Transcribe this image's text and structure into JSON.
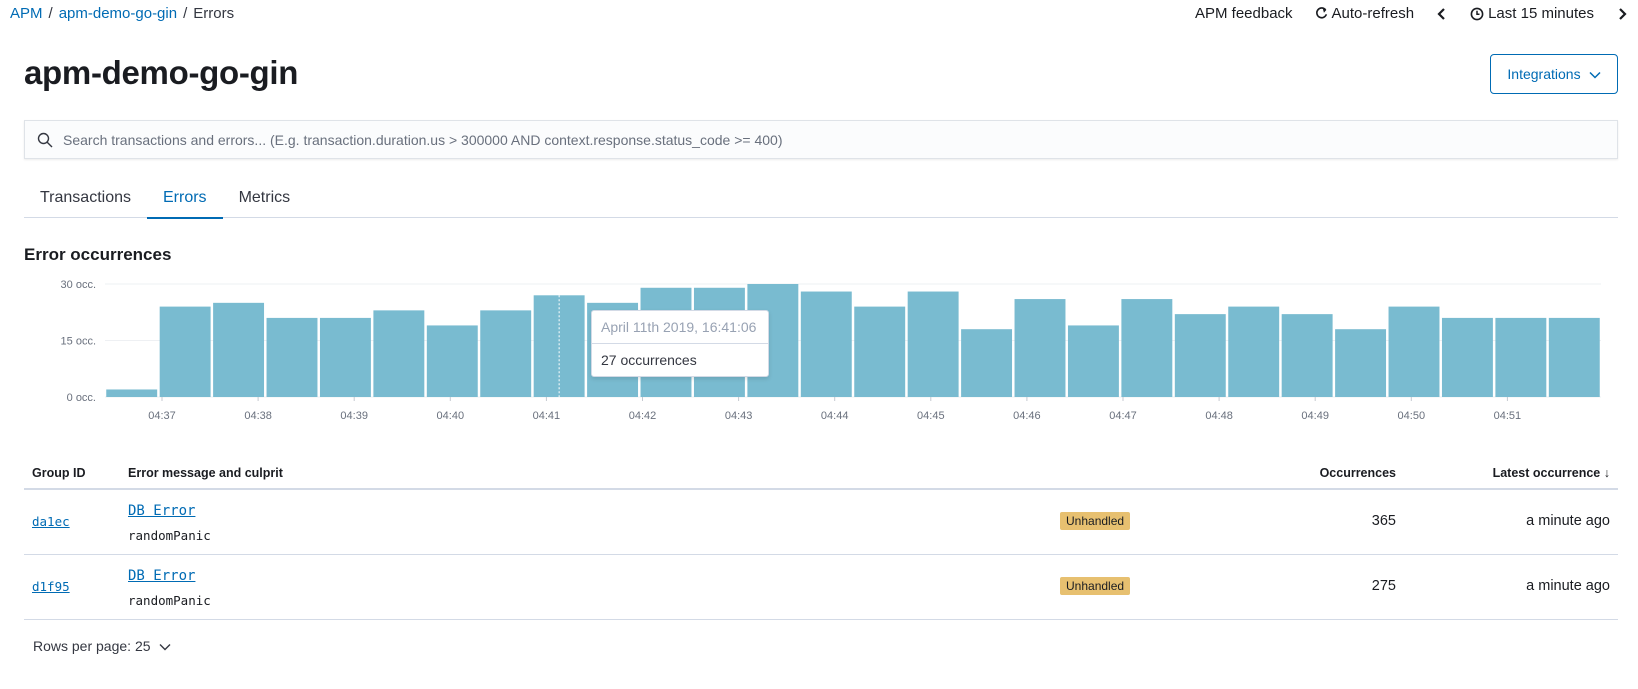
{
  "breadcrumb": {
    "root": "APM",
    "service": "apm-demo-go-gin",
    "current": "Errors",
    "separator": "/"
  },
  "header": {
    "feedback": "APM feedback",
    "auto_refresh": "Auto-refresh",
    "time_range": "Last 15 minutes"
  },
  "page": {
    "title": "apm-demo-go-gin",
    "integrations_label": "Integrations"
  },
  "search": {
    "placeholder": "Search transactions and errors... (E.g. transaction.duration.us > 300000 AND context.response.status_code >= 400)",
    "value": ""
  },
  "tabs": [
    {
      "label": "Transactions",
      "active": false
    },
    {
      "label": "Errors",
      "active": true
    },
    {
      "label": "Metrics",
      "active": false
    }
  ],
  "section_title": "Error occurrences",
  "chart_data": {
    "type": "bar",
    "title": "Error occurrences",
    "y_ticks": [
      "30 occ.",
      "15 occ.",
      "0 occ."
    ],
    "ylim": [
      0,
      30
    ],
    "x_tick_labels": [
      "04:37",
      "04:38",
      "04:39",
      "04:40",
      "04:41",
      "04:42",
      "04:43",
      "04:44",
      "04:45",
      "04:46",
      "04:47",
      "04:48",
      "04:49",
      "04:50",
      "04:51"
    ],
    "values": [
      2,
      24,
      25,
      21,
      21,
      23,
      19,
      23,
      27,
      25,
      29,
      29,
      30,
      28,
      24,
      28,
      18,
      26,
      19,
      26,
      22,
      24,
      22,
      18,
      24,
      21,
      21,
      21
    ],
    "highlight_index": 8,
    "color": "#79bbd0"
  },
  "tooltip": {
    "title": "April 11th 2019, 16:41:06",
    "value": "27 occurrences"
  },
  "table": {
    "headers": {
      "group_id": "Group ID",
      "message": "Error message and culprit",
      "occurrences": "Occurrences",
      "latest": "Latest occurrence",
      "sort_indicator": "↓"
    },
    "rows": [
      {
        "group_id": "da1ec",
        "message": "DB Error",
        "culprit": "randomPanic",
        "badge": "Unhandled",
        "occurrences": "365",
        "latest": "a minute ago"
      },
      {
        "group_id": "d1f95",
        "message": "DB Error",
        "culprit": "randomPanic",
        "badge": "Unhandled",
        "occurrences": "275",
        "latest": "a minute ago"
      }
    ]
  },
  "pagination": {
    "rows_per_page": "Rows per page: 25"
  },
  "colors": {
    "link": "#006bb4",
    "bar": "#79bbd0",
    "badge": "#e7c070"
  }
}
